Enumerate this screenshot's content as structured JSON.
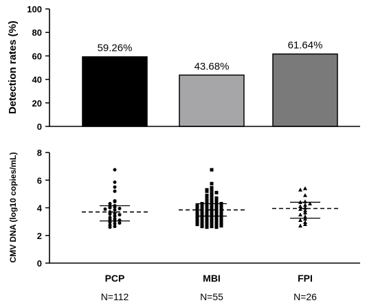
{
  "chart_data": [
    {
      "type": "bar",
      "ylabel": "Detection rates (%)",
      "ylim": [
        0,
        100
      ],
      "yticks": [
        0,
        20,
        40,
        60,
        80,
        100
      ],
      "categories": [
        "PCP",
        "MBI",
        "FPI"
      ],
      "values": [
        59.26,
        43.68,
        61.64
      ],
      "data_labels": [
        "59.26%",
        "43.68%",
        "61.64%"
      ],
      "colors": [
        "#000000",
        "#a6a6a8",
        "#7a7a7a"
      ],
      "grid": false
    },
    {
      "type": "scatter",
      "ylabel": "CMV DNA (log10 copies/mL)",
      "ylim": [
        0,
        8
      ],
      "yticks": [
        0,
        2,
        4,
        6,
        8
      ],
      "categories": [
        "PCP",
        "MBI",
        "FPI"
      ],
      "n_labels": [
        "N=112",
        "N=55",
        "N=26"
      ],
      "markers": [
        "circle",
        "square",
        "triangle"
      ],
      "grid": false,
      "groups": [
        {
          "category": "PCP",
          "median": 3.7,
          "q1": 3.05,
          "q3": 4.15,
          "points": [
            6.75,
            5.85,
            5.5,
            5.2,
            4.5,
            4.45,
            4.3,
            4.15,
            4.1,
            4.05,
            4.0,
            3.95,
            3.9,
            3.85,
            3.7,
            3.6,
            3.55,
            3.5,
            3.4,
            3.3,
            3.2,
            3.15,
            3.1,
            3.05,
            2.95,
            2.9,
            2.85,
            2.75,
            2.65,
            2.6
          ]
        },
        {
          "category": "MBI",
          "median": 3.85,
          "q1": 3.4,
          "q3": 4.3,
          "points": [
            6.75,
            5.75,
            5.45,
            5.3,
            5.25,
            5.2,
            5.1,
            5.0,
            4.9,
            4.85,
            4.8,
            4.7,
            4.6,
            4.55,
            4.5,
            4.45,
            4.4,
            4.35,
            4.3,
            4.25,
            4.2,
            4.15,
            4.1,
            4.05,
            4.0,
            3.95,
            3.9,
            3.85,
            3.8,
            3.75,
            3.7,
            3.65,
            3.6,
            3.55,
            3.5,
            3.45,
            3.4,
            3.35,
            3.3,
            3.25,
            3.2,
            3.15,
            3.1,
            3.05,
            3.0,
            2.95,
            2.9,
            2.85,
            2.8,
            2.75,
            2.7,
            2.65,
            2.6,
            2.6,
            2.65,
            2.7,
            2.8,
            2.9,
            3.0,
            3.1,
            3.2,
            3.3,
            3.4,
            3.5,
            3.6,
            3.7,
            3.8,
            3.9,
            4.0,
            4.1,
            4.2,
            4.3
          ]
        },
        {
          "category": "FPI",
          "median": 3.95,
          "q1": 3.25,
          "q3": 4.4,
          "points": [
            5.4,
            5.3,
            4.9,
            4.45,
            4.4,
            4.3,
            4.2,
            4.1,
            4.0,
            3.9,
            3.8,
            3.65,
            3.5,
            3.35,
            3.2,
            3.1,
            2.95,
            2.8,
            2.7
          ]
        }
      ]
    }
  ]
}
